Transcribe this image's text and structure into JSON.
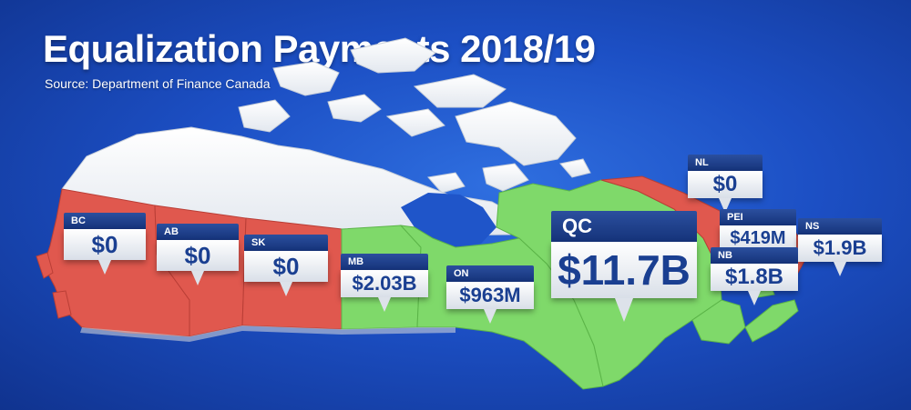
{
  "title": "Equalization Payments 2018/19",
  "source": "Source: Department of Finance Canada",
  "colors": {
    "background": "#1c4fc4",
    "receiving": "#7fd96a",
    "not_receiving": "#e0584e",
    "territories": "#f4f6f9",
    "label_value_text": "#1a3f91",
    "label_header": "#1f418c"
  },
  "provinces": [
    {
      "code": "BC",
      "amount": "$0",
      "status": "not_receiving"
    },
    {
      "code": "AB",
      "amount": "$0",
      "status": "not_receiving"
    },
    {
      "code": "SK",
      "amount": "$0",
      "status": "not_receiving"
    },
    {
      "code": "MB",
      "amount": "$2.03B",
      "status": "receiving"
    },
    {
      "code": "ON",
      "amount": "$963M",
      "status": "receiving"
    },
    {
      "code": "QC",
      "amount": "$11.7B",
      "status": "receiving"
    },
    {
      "code": "NL",
      "amount": "$0",
      "status": "not_receiving"
    },
    {
      "code": "PEI",
      "amount": "$419M",
      "status": "receiving"
    },
    {
      "code": "NS",
      "amount": "$1.9B",
      "status": "receiving"
    },
    {
      "code": "NB",
      "amount": "$1.8B",
      "status": "receiving"
    }
  ]
}
